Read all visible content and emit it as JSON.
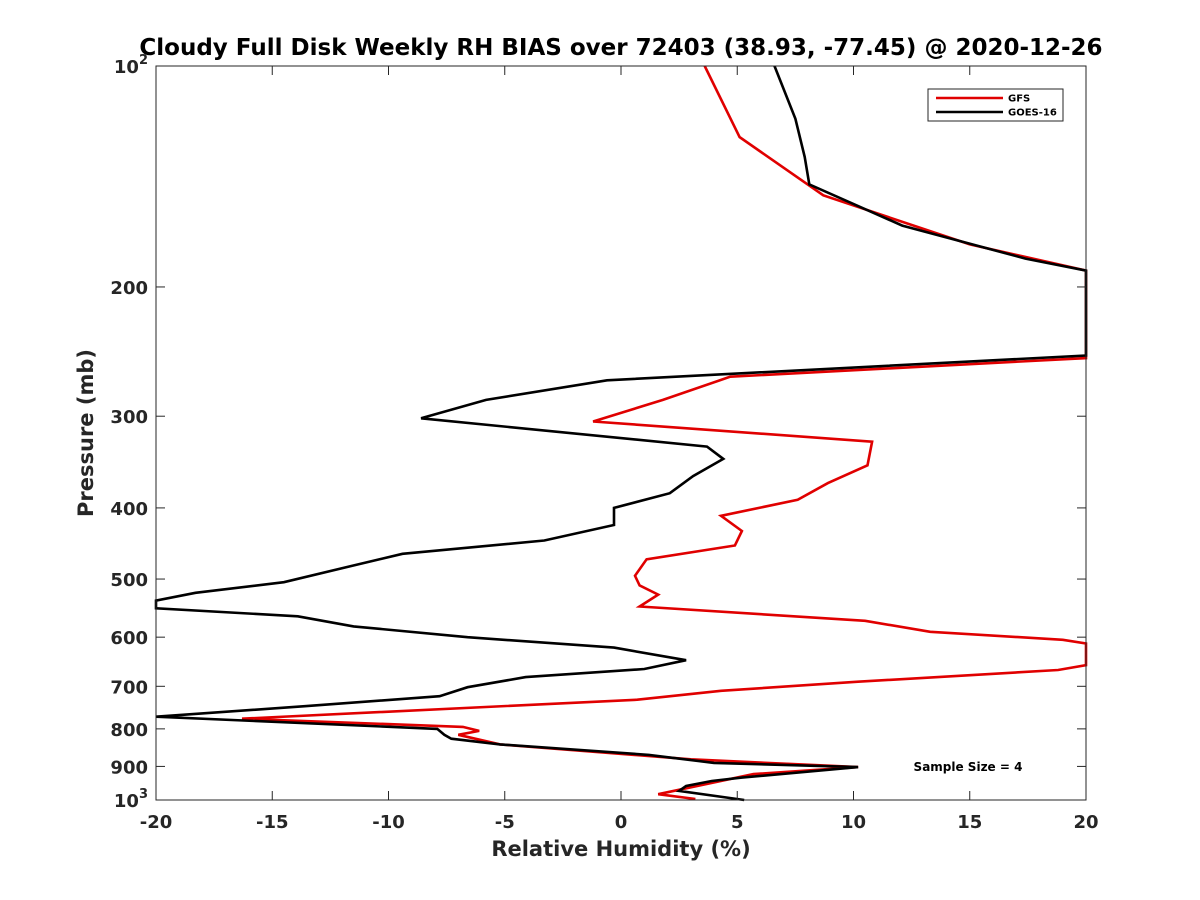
{
  "chart_data": {
    "type": "line",
    "title": "Cloudy Full Disk Weekly RH BIAS over 72403 (38.93, -77.45) @ 2020-12-26",
    "xlabel": "Relative Humidity (%)",
    "ylabel": "Pressure (mb)",
    "xlim": [
      -20,
      20
    ],
    "ylim": [
      100,
      1000
    ],
    "y_scale": "log",
    "y_reversed": true,
    "grid": false,
    "legend_position": "top-right",
    "x_ticks": [
      {
        "value": -20,
        "label": "-20"
      },
      {
        "value": -15,
        "label": "-15"
      },
      {
        "value": -10,
        "label": "-10"
      },
      {
        "value": -5,
        "label": "-5"
      },
      {
        "value": 0,
        "label": "0"
      },
      {
        "value": 5,
        "label": "5"
      },
      {
        "value": 10,
        "label": "10"
      },
      {
        "value": 15,
        "label": "15"
      },
      {
        "value": 20,
        "label": "20"
      }
    ],
    "y_ticks": [
      {
        "value": 100,
        "base": "10",
        "exp": "2"
      },
      {
        "value": 200,
        "base": "200",
        "exp": ""
      },
      {
        "value": 300,
        "base": "300",
        "exp": ""
      },
      {
        "value": 400,
        "base": "400",
        "exp": ""
      },
      {
        "value": 500,
        "base": "500",
        "exp": ""
      },
      {
        "value": 600,
        "base": "600",
        "exp": ""
      },
      {
        "value": 700,
        "base": "700",
        "exp": ""
      },
      {
        "value": 800,
        "base": "800",
        "exp": ""
      },
      {
        "value": 900,
        "base": "900",
        "exp": ""
      },
      {
        "value": 1000,
        "base": "10",
        "exp": "3"
      }
    ],
    "annotation": "Sample Size = 4",
    "series": [
      {
        "name": "GFS",
        "color": "#e00000",
        "points": [
          [
            3.6,
            100
          ],
          [
            5.1,
            125
          ],
          [
            8.7,
            150
          ],
          [
            15.0,
            175
          ],
          [
            20.0,
            190
          ],
          [
            20.0,
            250
          ],
          [
            4.7,
            265
          ],
          [
            1.8,
            285
          ],
          [
            -1.2,
            305
          ],
          [
            10.8,
            325
          ],
          [
            10.6,
            350
          ],
          [
            8.9,
            370
          ],
          [
            7.6,
            390
          ],
          [
            4.3,
            410
          ],
          [
            5.2,
            430
          ],
          [
            4.9,
            450
          ],
          [
            1.1,
            470
          ],
          [
            0.6,
            495
          ],
          [
            0.8,
            510
          ],
          [
            1.6,
            525
          ],
          [
            0.8,
            545
          ],
          [
            10.5,
            570
          ],
          [
            13.3,
            590
          ],
          [
            19.0,
            605
          ],
          [
            20.0,
            612
          ],
          [
            20.0,
            655
          ],
          [
            18.8,
            665
          ],
          [
            10.2,
            690
          ],
          [
            4.3,
            710
          ],
          [
            0.7,
            730
          ],
          [
            -16.3,
            775
          ],
          [
            -6.8,
            795
          ],
          [
            -6.1,
            805
          ],
          [
            -7.0,
            815
          ],
          [
            -5.2,
            840
          ],
          [
            3.0,
            880
          ],
          [
            10.2,
            902
          ],
          [
            5.7,
            922
          ],
          [
            1.6,
            982
          ],
          [
            3.2,
            997
          ]
        ]
      },
      {
        "name": "GOES-16",
        "color": "#000000",
        "points": [
          [
            6.6,
            100
          ],
          [
            7.5,
            118
          ],
          [
            7.9,
            133
          ],
          [
            8.1,
            145
          ],
          [
            12.1,
            165
          ],
          [
            17.4,
            183
          ],
          [
            20.0,
            190
          ],
          [
            20.0,
            248
          ],
          [
            -0.6,
            268
          ],
          [
            -5.8,
            285
          ],
          [
            -8.6,
            302
          ],
          [
            3.7,
            330
          ],
          [
            4.4,
            343
          ],
          [
            3.1,
            362
          ],
          [
            2.1,
            382
          ],
          [
            -0.3,
            400
          ],
          [
            -0.3,
            422
          ],
          [
            -3.3,
            443
          ],
          [
            -9.4,
            462
          ],
          [
            -11.6,
            480
          ],
          [
            -14.5,
            505
          ],
          [
            -18.3,
            522
          ],
          [
            -20.0,
            535
          ],
          [
            -20.0,
            548
          ],
          [
            -13.9,
            562
          ],
          [
            -11.5,
            580
          ],
          [
            -6.6,
            600
          ],
          [
            -0.3,
            620
          ],
          [
            2.8,
            645
          ],
          [
            1.0,
            663
          ],
          [
            -4.1,
            680
          ],
          [
            -6.6,
            702
          ],
          [
            -7.8,
            722
          ],
          [
            -13.6,
            745
          ],
          [
            -20.0,
            770
          ],
          [
            -7.9,
            800
          ],
          [
            -7.6,
            815
          ],
          [
            -7.3,
            825
          ],
          [
            -5.2,
            840
          ],
          [
            1.2,
            868
          ],
          [
            4.0,
            890
          ],
          [
            10.2,
            902
          ],
          [
            5.2,
            932
          ],
          [
            3.9,
            942
          ],
          [
            2.8,
            957
          ],
          [
            2.5,
            972
          ],
          [
            5.3,
            1000
          ]
        ]
      }
    ]
  }
}
